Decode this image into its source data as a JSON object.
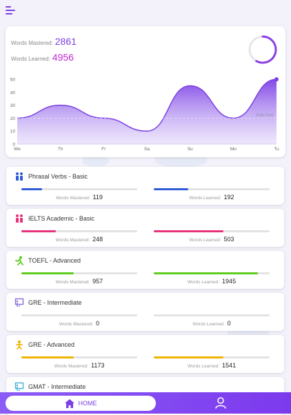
{
  "stats": {
    "mastered_label": "Words Mastered:",
    "mastered_value": "2861",
    "learned_label": "Words Learned:",
    "learned_value": "4956"
  },
  "progress_ring": {
    "fraction": 0.58
  },
  "chart_data": {
    "type": "area",
    "x": [
      "We",
      "Th",
      "Fr",
      "Sa",
      "Su",
      "Mo",
      "Tu"
    ],
    "values": [
      20,
      30,
      20,
      10,
      45,
      20,
      50
    ],
    "y_ticks": [
      "50",
      "40",
      "30",
      "20",
      "10",
      "0"
    ],
    "ylim": [
      0,
      50
    ],
    "goal": {
      "label": "Daily Goal",
      "value": 20
    },
    "color": "#7b3fe4"
  },
  "courses": [
    {
      "title": "Phrasal Verbs - Basic",
      "icon": "people-icon",
      "color": "#2f5bd6",
      "mastered_label": "Words Mastered:",
      "mastered": "119",
      "mastered_frac": 0.18,
      "learned_label": "Words Learned:",
      "learned": "192",
      "learned_frac": 0.3
    },
    {
      "title": "IELTS Academic - Basic",
      "icon": "people-icon",
      "color": "#e8307a",
      "mastered_label": "Words Mastered:",
      "mastered": "248",
      "mastered_frac": 0.3,
      "learned_label": "Words Learned:",
      "learned": "503",
      "learned_frac": 0.6
    },
    {
      "title": "TOEFL - Advanced",
      "icon": "runner-icon",
      "color": "#5ccc1a",
      "mastered_label": "Words Mastered:",
      "mastered": "957",
      "mastered_frac": 0.45,
      "learned_label": "Words Learned:",
      "learned": "1945",
      "learned_frac": 0.9
    },
    {
      "title": "GRE - Intermediate",
      "icon": "presentation-icon",
      "color": "#8b6cd8",
      "mastered_label": "Words Mastered:",
      "mastered": "0",
      "mastered_frac": 0,
      "learned_label": "Words Learned:",
      "learned": "0",
      "learned_frac": 0
    },
    {
      "title": "GRE - Advanced",
      "icon": "person-icon",
      "color": "#f0b400",
      "mastered_label": "Words Mastered:",
      "mastered": "1173",
      "mastered_frac": 0.45,
      "learned_label": "Words Learned:",
      "learned": "1541",
      "learned_frac": 0.6
    },
    {
      "title": "GMAT - Intermediate",
      "icon": "presentation-icon",
      "color": "#3bb0d8",
      "mastered_label": "",
      "mastered": "",
      "mastered_frac": 0,
      "learned_label": "",
      "learned": "",
      "learned_frac": 0
    }
  ],
  "nav": {
    "home_label": "HOME",
    "home_icon": "home-icon",
    "profile_icon": "profile-icon"
  }
}
